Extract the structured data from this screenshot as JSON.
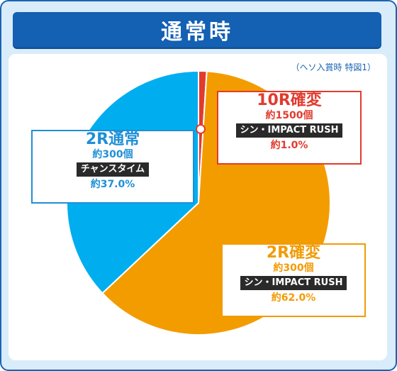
{
  "title": "通常時",
  "note": "（ヘソ入賞時 特図1）",
  "colors": {
    "frame": "#1a64b4",
    "blue": "#00aeef",
    "red": "#e13b2e",
    "orange": "#f39c00"
  },
  "chart_data": {
    "type": "pie",
    "title": "通常時",
    "slices": [
      {
        "label": "10R確変",
        "value": 1.0,
        "color": "#e13b2e"
      },
      {
        "label": "2R確変",
        "value": 62.0,
        "color": "#f39c00"
      },
      {
        "label": "2R通常",
        "value": 37.0,
        "color": "#00aeef"
      }
    ]
  },
  "labels": {
    "normal2r": {
      "name": "2R通常",
      "count": "約300個",
      "tag": "チャンスタイム",
      "pct": "約37.0%"
    },
    "kakuhen10r": {
      "name": "10R確変",
      "count": "約1500個",
      "tag": "シン・IMPACT RUSH",
      "pct": "約1.0%"
    },
    "kakuhen2r": {
      "name": "2R確変",
      "count": "約300個",
      "tag": "シン・IMPACT RUSH",
      "pct": "約62.0%"
    }
  }
}
